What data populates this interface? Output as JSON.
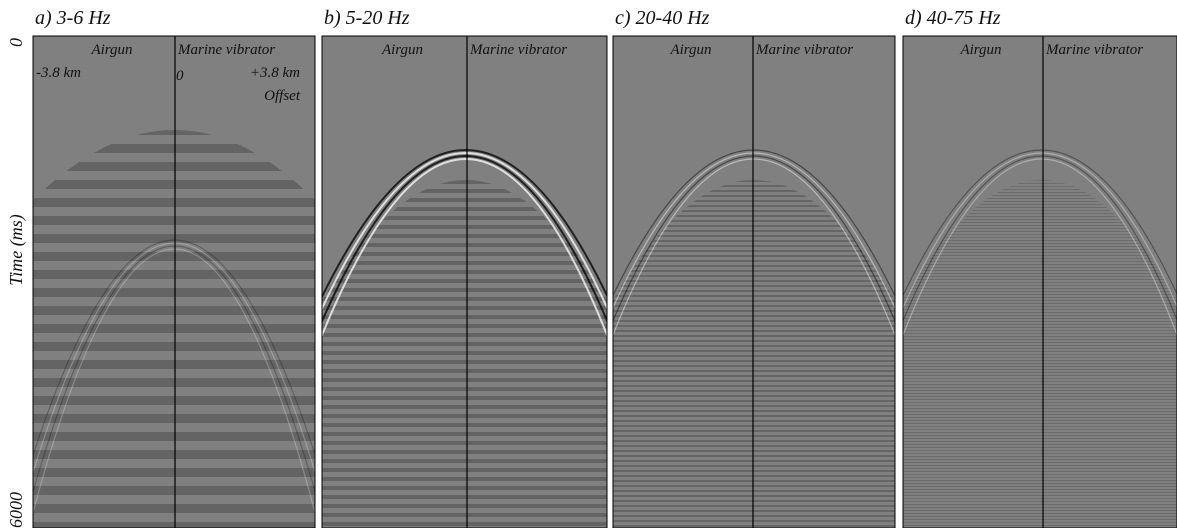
{
  "axis": {
    "label": "Time (ms)",
    "top_tick": "0",
    "bottom_tick": "6000"
  },
  "panels": [
    {
      "title": "a) 3-6 Hz",
      "left": "Airgun",
      "right": "Marine vibrator",
      "offset_left": "-3.8 km",
      "offset_zero": "0",
      "offset_right": "+3.8 km",
      "offset_label": "Offset"
    },
    {
      "title": "b) 5-20 Hz",
      "left": "Airgun",
      "right": "Marine vibrator"
    },
    {
      "title": "c) 20-40 Hz",
      "left": "Airgun",
      "right": "Marine vibrator"
    },
    {
      "title": "d) 40-75 Hz",
      "left": "Airgun",
      "right": "Marine vibrator"
    }
  ]
}
